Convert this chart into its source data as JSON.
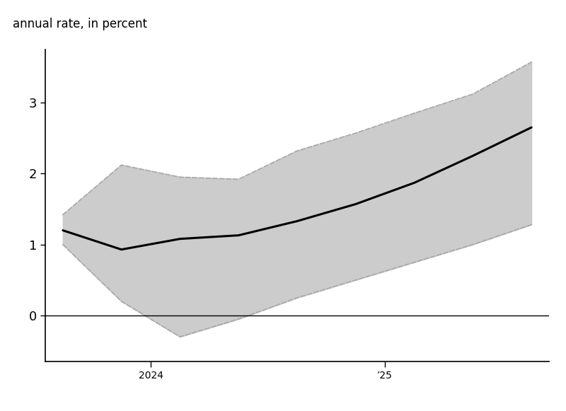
{
  "x_values": [
    0,
    1,
    2,
    3,
    4,
    5,
    6,
    7,
    8
  ],
  "median": [
    1.2,
    0.93,
    1.08,
    1.13,
    1.33,
    1.57,
    1.87,
    2.25,
    2.65
  ],
  "q25": [
    1.0,
    0.2,
    -0.3,
    -0.05,
    0.25,
    0.5,
    0.75,
    1.0,
    1.28
  ],
  "q75": [
    1.42,
    2.12,
    1.95,
    1.92,
    2.32,
    2.57,
    2.85,
    3.12,
    3.57
  ],
  "median_color": "#000000",
  "band_fill_color": "#cccccc",
  "band_edge_color": "#aaaaaa",
  "zero_line_color": "#000000",
  "ylabel": "annual rate, in percent",
  "ylim": [
    -0.65,
    3.75
  ],
  "yticks": [
    0,
    1,
    2,
    3
  ],
  "xtick_positions": [
    1.5,
    5.5
  ],
  "xtick_labels": [
    "2024",
    "’25"
  ],
  "background_color": "#ffffff",
  "figsize": [
    8.0,
    5.81
  ],
  "dpi": 100,
  "ylabel_fontsize": 12,
  "tick_fontsize": 13,
  "line_width": 2.2,
  "band_lw": 1.3,
  "spine_lw": 1.2
}
